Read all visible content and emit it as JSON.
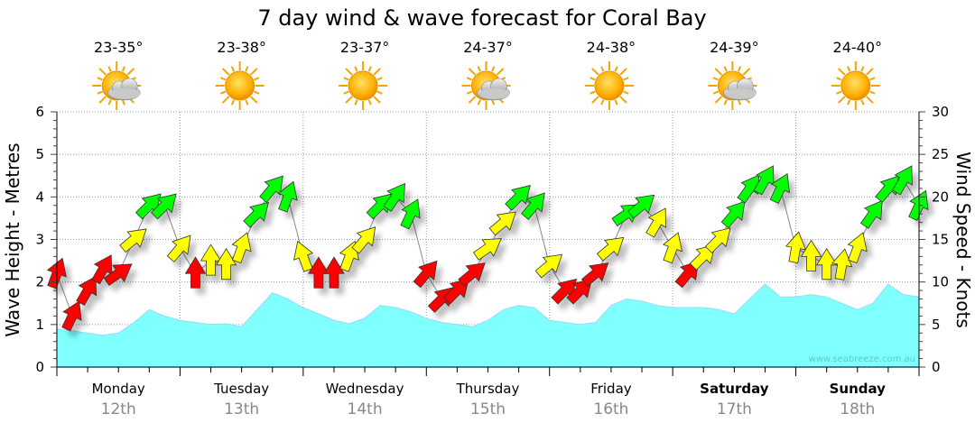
{
  "chart_data": {
    "type": "area+arrows",
    "title": "7 day wind & wave forecast for Coral Bay",
    "ylabel_left": "Wave Height - Metres",
    "ylabel_right": "Wind Speed - Knots",
    "ylim_left": [
      0,
      6
    ],
    "ylim_right": [
      0,
      30
    ],
    "left_ticks": [
      "0",
      "1",
      "2",
      "3",
      "4",
      "5",
      "6"
    ],
    "right_ticks": [
      "0",
      "5",
      "10",
      "15",
      "20",
      "25",
      "30"
    ],
    "grid": true,
    "watermark": "www.seabreeze.com.au",
    "days": [
      {
        "name": "Monday",
        "date": "12th",
        "temp": "23-35°",
        "icon": "sun-cloud",
        "bold": false
      },
      {
        "name": "Tuesday",
        "date": "13th",
        "temp": "23-38°",
        "icon": "sun",
        "bold": false
      },
      {
        "name": "Wednesday",
        "date": "14th",
        "temp": "23-37°",
        "icon": "sun",
        "bold": false
      },
      {
        "name": "Thursday",
        "date": "15th",
        "temp": "24-37°",
        "icon": "sun-cloud",
        "bold": false
      },
      {
        "name": "Friday",
        "date": "16th",
        "temp": "24-38°",
        "icon": "sun",
        "bold": false
      },
      {
        "name": "Saturday",
        "date": "17th",
        "temp": "24-39°",
        "icon": "sun-cloud",
        "bold": true
      },
      {
        "name": "Sunday",
        "date": "18th",
        "temp": "24-40°",
        "icon": "sun",
        "bold": true
      }
    ],
    "hours_step": 3,
    "wave_height_m": [
      0.9,
      0.85,
      0.8,
      0.75,
      0.8,
      1.05,
      1.35,
      1.2,
      1.1,
      1.05,
      1.0,
      1.02,
      0.95,
      1.35,
      1.75,
      1.6,
      1.4,
      1.25,
      1.1,
      1.02,
      1.15,
      1.45,
      1.4,
      1.3,
      1.15,
      1.05,
      1.0,
      0.95,
      1.1,
      1.35,
      1.45,
      1.4,
      1.1,
      1.05,
      1.0,
      1.05,
      1.45,
      1.6,
      1.55,
      1.45,
      1.4,
      1.4,
      1.4,
      1.35,
      1.25,
      1.6,
      1.95,
      1.65,
      1.65,
      1.7,
      1.65,
      1.5,
      1.35,
      1.5,
      1.95,
      1.7,
      1.65
    ],
    "wind_speed_kn": [
      11,
      6,
      9,
      11.5,
      11,
      15,
      19,
      19,
      14,
      11,
      12.5,
      12,
      14,
      18,
      21,
      20,
      13,
      11,
      11,
      13,
      15,
      19,
      20,
      18,
      11,
      8,
      9,
      11,
      14,
      17,
      20,
      19,
      12,
      9,
      9,
      11,
      14,
      18,
      19,
      17,
      14,
      11,
      13,
      15,
      18,
      21,
      22,
      21,
      14,
      13,
      12,
      12,
      14,
      18,
      21,
      22,
      19
    ],
    "wind_dir_deg": [
      20,
      25,
      30,
      30,
      55,
      50,
      45,
      45,
      40,
      0,
      0,
      0,
      20,
      45,
      40,
      20,
      340,
      0,
      0,
      20,
      40,
      45,
      35,
      25,
      40,
      45,
      45,
      50,
      55,
      50,
      45,
      40,
      50,
      45,
      45,
      50,
      50,
      55,
      50,
      30,
      20,
      40,
      45,
      45,
      40,
      35,
      30,
      25,
      10,
      0,
      0,
      10,
      20,
      35,
      40,
      30,
      25
    ],
    "speed_colors": {
      "light": "#ff0000",
      "moderate": "#ffff00",
      "strong": "#00ff00"
    },
    "wave_color": "#80ffff"
  }
}
